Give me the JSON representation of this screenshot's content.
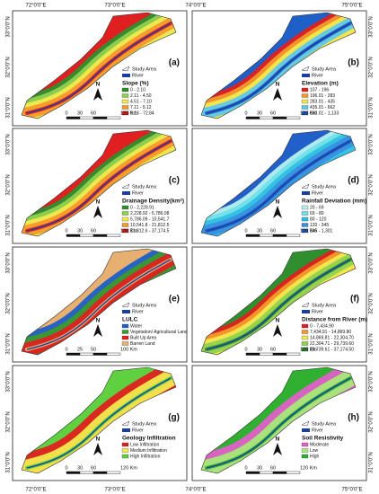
{
  "longitudes": [
    "72°0'0\"E",
    "73°0'0\"E",
    "74°0'0\"E",
    "75°0'0\"E"
  ],
  "latitudes": [
    "33°0'0\"N",
    "32°0'0\"N",
    "31°0'0\"N"
  ],
  "north": "N",
  "panels": [
    {
      "label": "(a)",
      "study_area": "Study Area",
      "river": "River",
      "title": "Slope (%)",
      "scale": [
        "0",
        "30",
        "60",
        "120 Km"
      ],
      "legend": [
        {
          "label": "0 - 2.10",
          "color": "#2f8f2f"
        },
        {
          "label": "2.11 - 4.50",
          "color": "#8fd14f"
        },
        {
          "label": "4.51 - 7.10",
          "color": "#f2e94e"
        },
        {
          "label": "7.11 - 9.12",
          "color": "#f59a2c"
        },
        {
          "label": "9.13 - 72.84",
          "color": "#e02020"
        }
      ]
    },
    {
      "label": "(b)",
      "study_area": "Study Area",
      "river": "River",
      "title": "Elevation (m)",
      "scale": [
        "0",
        "30",
        "60",
        "120 Km"
      ],
      "legend": [
        {
          "label": "107 - 196",
          "color": "#e02020"
        },
        {
          "label": "196.01 - 283",
          "color": "#f59a2c"
        },
        {
          "label": "283.01 - 435",
          "color": "#f2e94e"
        },
        {
          "label": "435.01 - 662",
          "color": "#5fc8e8"
        },
        {
          "label": "662.01 - 1,133",
          "color": "#1e5fc8"
        }
      ]
    },
    {
      "label": "(c)",
      "study_area": "Study Area",
      "river": "River",
      "title": "Drainage Density(km²)",
      "scale": [
        "0",
        "30",
        "60",
        "120 Km"
      ],
      "legend": [
        {
          "label": "0 - 2,228.91",
          "color": "#2f8f2f"
        },
        {
          "label": "2,228.92 - 5,786.08",
          "color": "#8fd14f"
        },
        {
          "label": "5,786.09 - 10,541.7",
          "color": "#f2e94e"
        },
        {
          "label": "10,541.8 - 21,812.5",
          "color": "#f59a2c"
        },
        {
          "label": "21,812.6 - 37,174.5",
          "color": "#e02020"
        }
      ]
    },
    {
      "label": "(d)",
      "study_area": "Study Area",
      "river": "River",
      "title": "Rainfall Deviation (mm)",
      "scale": [
        "0",
        "30",
        "60",
        "120 Km"
      ],
      "legend": [
        {
          "label": "20 - 69",
          "color": "#b8f0f0"
        },
        {
          "label": "69 - 80",
          "color": "#6fe0e8"
        },
        {
          "label": "80 - 120",
          "color": "#2fc0e0"
        },
        {
          "label": "120 - 345",
          "color": "#3a90e0"
        },
        {
          "label": "345 - 1,301",
          "color": "#2060c8"
        }
      ]
    },
    {
      "label": "(e)",
      "study_area": "Study Area",
      "river": "River",
      "title": "LULC",
      "scale": [
        "0",
        "25",
        "50",
        "100 Km"
      ],
      "legend": [
        {
          "label": "Water",
          "color": "#1e5fc8"
        },
        {
          "label": "Vegetation/ Agricultural Land",
          "color": "#3c9a2c"
        },
        {
          "label": "Built Up Area",
          "color": "#e02020"
        },
        {
          "label": "Barren Land",
          "color": "#e8b070"
        }
      ]
    },
    {
      "label": "(f)",
      "study_area": "Study Area",
      "river": "River",
      "title": "Distance from River (m)",
      "scale": [
        "0",
        "30",
        "60",
        "120 Km"
      ],
      "legend": [
        {
          "label": "0 - 7,434.90",
          "color": "#e02020"
        },
        {
          "label": "7,434.91 - 14,869.80",
          "color": "#f59a2c"
        },
        {
          "label": "14,869.81 - 22,304.70",
          "color": "#f2e94e"
        },
        {
          "label": "22,304.71 - 29,739.60",
          "color": "#8fd14f"
        },
        {
          "label": "29,739.61 - 37,174.50",
          "color": "#2f8f2f"
        }
      ]
    },
    {
      "label": "(g)",
      "study_area": "Study Area",
      "river": "River",
      "title": "Geology Infiltration",
      "scale": [
        "0",
        "30",
        "60",
        "120 Km"
      ],
      "legend": [
        {
          "label": "Low Infiltration",
          "color": "#e02020"
        },
        {
          "label": "Medium Infiltration",
          "color": "#f2e94e"
        },
        {
          "label": "High Infiltration",
          "color": "#5fd040"
        }
      ]
    },
    {
      "label": "(h)",
      "study_area": "Study Area",
      "river": "River",
      "title": "Soil Resistivity",
      "scale": [
        "0",
        "30",
        "60",
        "120 Km"
      ],
      "legend": [
        {
          "label": "Moderate",
          "color": "#e060c8"
        },
        {
          "label": "Low",
          "color": "#a8e878"
        },
        {
          "label": "High",
          "color": "#30b030"
        }
      ]
    }
  ]
}
